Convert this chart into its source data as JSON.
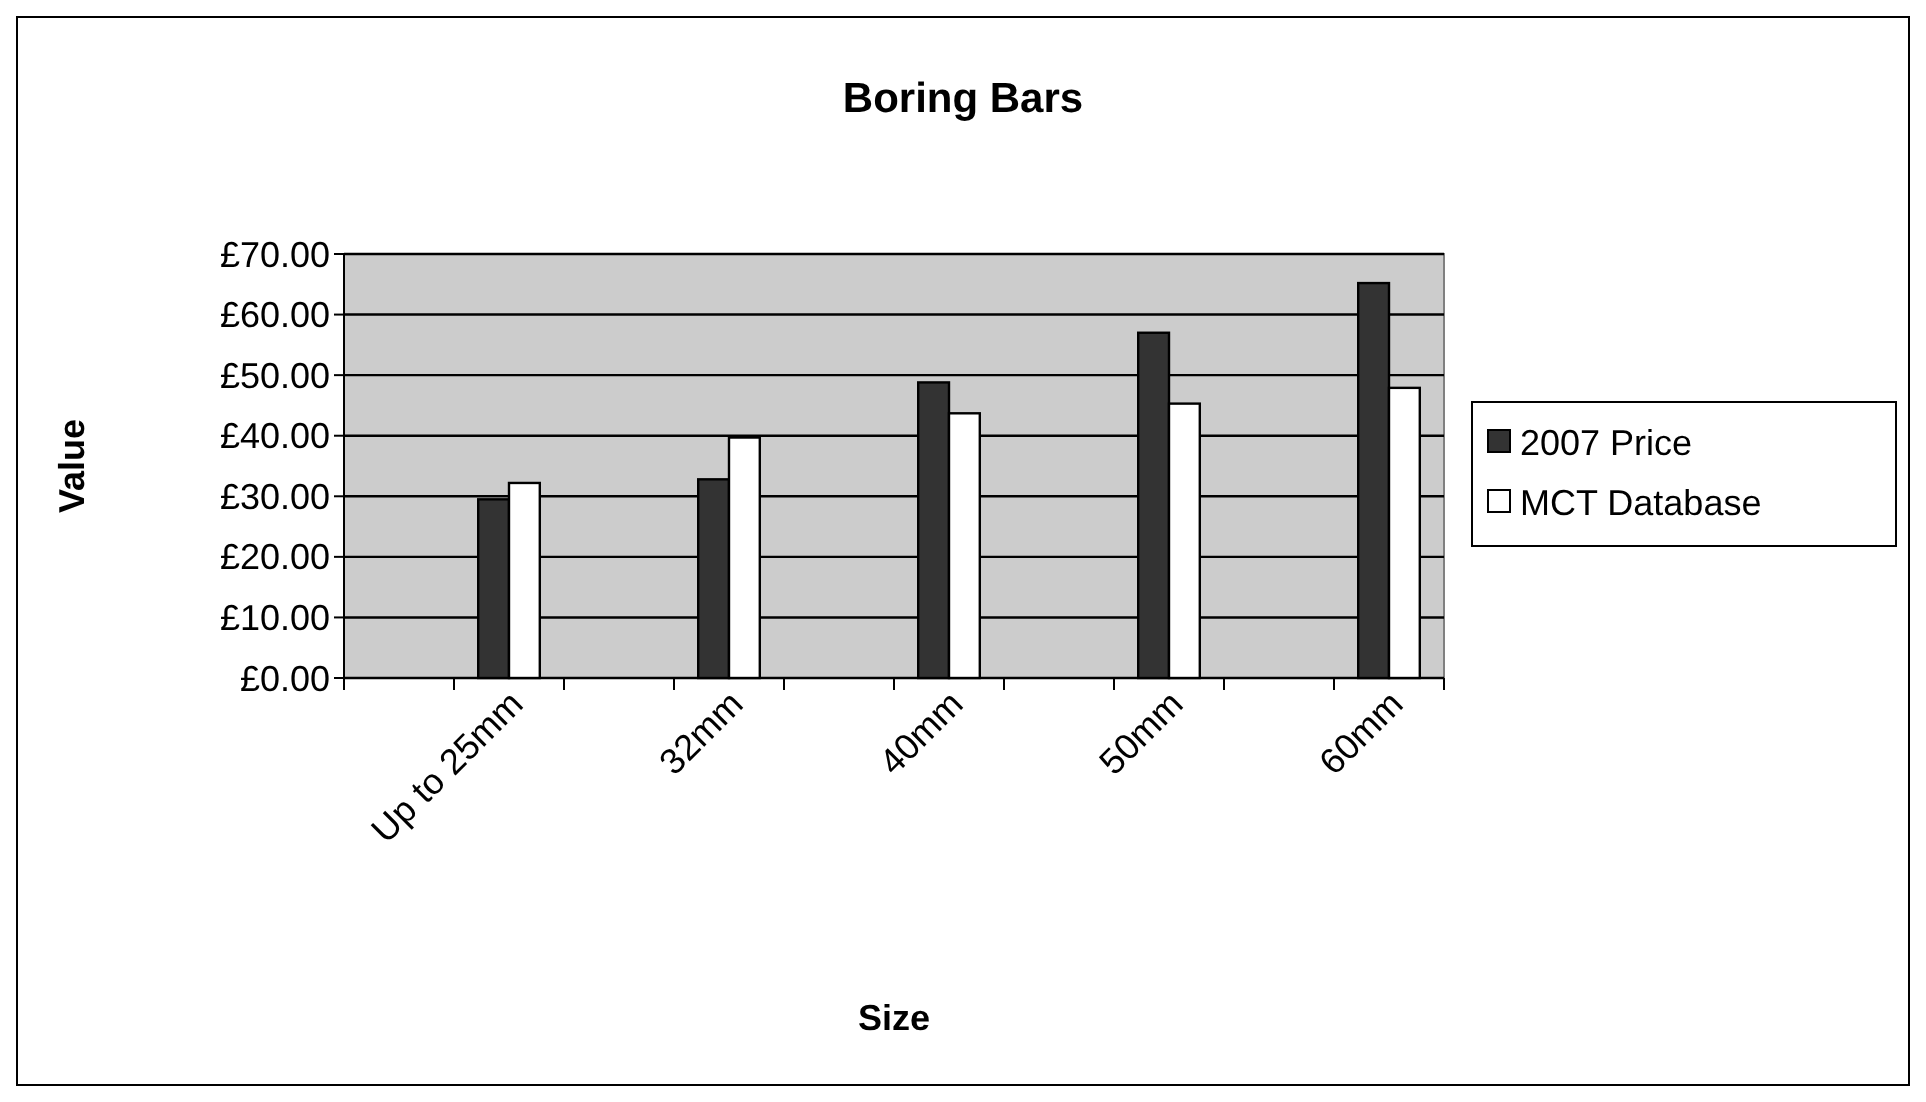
{
  "chart_data": {
    "type": "bar",
    "title": "Boring Bars",
    "xlabel": "Size",
    "ylabel": "Value",
    "categories": [
      null,
      "Up to 25mm",
      null,
      "32mm",
      null,
      "40mm",
      null,
      "50mm",
      null,
      "60mm"
    ],
    "series": [
      {
        "name": "2007 Price",
        "color": "#333333",
        "values": [
          null,
          29.5,
          null,
          32.8,
          null,
          48.8,
          null,
          57.0,
          null,
          65.2
        ]
      },
      {
        "name": "MCT Database",
        "color": "#ffffff",
        "values": [
          null,
          32.2,
          null,
          39.7,
          null,
          43.7,
          null,
          45.3,
          null,
          47.9
        ]
      }
    ],
    "ylim": [
      0,
      70
    ],
    "yticks": [
      {
        "value": 0,
        "label": "£0.00"
      },
      {
        "value": 10,
        "label": "£10.00"
      },
      {
        "value": 20,
        "label": "£20.00"
      },
      {
        "value": 30,
        "label": "£30.00"
      },
      {
        "value": 40,
        "label": "£40.00"
      },
      {
        "value": 50,
        "label": "£50.00"
      },
      {
        "value": 60,
        "label": "£60.00"
      },
      {
        "value": 70,
        "label": "£70.00"
      }
    ],
    "grid": "y",
    "legend": "right"
  }
}
